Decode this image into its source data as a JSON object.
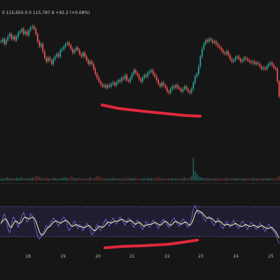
{
  "colors": {
    "background": "#161616",
    "bull": "#26a69a",
    "bear": "#ef5350",
    "volume_bull": "#1f5a55",
    "volume_bear": "#5a2a2a",
    "rsi_line": "#7b6cf6",
    "rsi_ma": "#e8e2a8",
    "rsi_band_fill": "#2b2547",
    "rsi_band_line": "#6f6abf",
    "annotation": "#e0283a",
    "separator": "#2a2a2a"
  },
  "legend": {
    "ohlc_text": "0 115,650.0  0 115,787.9  +92.2 (+0.08%)"
  },
  "time_axis": {
    "labels": [
      "18",
      "19",
      "20",
      "21",
      "22",
      "23",
      "24",
      "25"
    ]
  },
  "chart_data": [
    {
      "type": "candlestick",
      "description_series": "price",
      "x": [
        0,
        1,
        2,
        3,
        4,
        5,
        6,
        7,
        8,
        9,
        10,
        11,
        12,
        13,
        14,
        15,
        16,
        17,
        18,
        19,
        20,
        21,
        22,
        23,
        24,
        25,
        26,
        27,
        28,
        29,
        30,
        31,
        32,
        33,
        34,
        35,
        36,
        37,
        38,
        39,
        40,
        41,
        42,
        43,
        44,
        45,
        46,
        47,
        48,
        49,
        50,
        51,
        52,
        53,
        54,
        55,
        56,
        57,
        58,
        59,
        60,
        61,
        62,
        63,
        64,
        65,
        66,
        67,
        68,
        69,
        70,
        71,
        72,
        73,
        74,
        75,
        76,
        77,
        78,
        79,
        80,
        81,
        82,
        83,
        84,
        85,
        86,
        87,
        88,
        89,
        90,
        91,
        92,
        93,
        94,
        95,
        96,
        97,
        98,
        99,
        100,
        101,
        102,
        103,
        104,
        105,
        106,
        107,
        108,
        109,
        110,
        111,
        112,
        113,
        114,
        115,
        116,
        117,
        118,
        119,
        120,
        121,
        122,
        123,
        124,
        125,
        126,
        127,
        128,
        129,
        130,
        131,
        132,
        133,
        134,
        135,
        136,
        137,
        138,
        139,
        140,
        141,
        142,
        143,
        144,
        145,
        146,
        147,
        148,
        149,
        150,
        151,
        152,
        153,
        154,
        155,
        156,
        157,
        158,
        159
      ],
      "close": [
        0.62,
        0.64,
        0.6,
        0.63,
        0.66,
        0.68,
        0.64,
        0.66,
        0.63,
        0.66,
        0.69,
        0.7,
        0.72,
        0.68,
        0.7,
        0.67,
        0.71,
        0.73,
        0.74,
        0.72,
        0.68,
        0.62,
        0.58,
        0.6,
        0.54,
        0.49,
        0.46,
        0.49,
        0.47,
        0.44,
        0.48,
        0.5,
        0.52,
        0.5,
        0.55,
        0.56,
        0.58,
        0.6,
        0.61,
        0.59,
        0.56,
        0.53,
        0.55,
        0.57,
        0.55,
        0.52,
        0.5,
        0.53,
        0.5,
        0.47,
        0.44,
        0.46,
        0.44,
        0.4,
        0.36,
        0.33,
        0.3,
        0.28,
        0.26,
        0.27,
        0.25,
        0.27,
        0.26,
        0.28,
        0.29,
        0.27,
        0.29,
        0.31,
        0.3,
        0.33,
        0.32,
        0.35,
        0.31,
        0.3,
        0.33,
        0.36,
        0.39,
        0.37,
        0.35,
        0.32,
        0.3,
        0.33,
        0.35,
        0.34,
        0.37,
        0.38,
        0.39,
        0.36,
        0.34,
        0.31,
        0.28,
        0.26,
        0.29,
        0.27,
        0.25,
        0.22,
        0.21,
        0.24,
        0.26,
        0.25,
        0.27,
        0.25,
        0.24,
        0.22,
        0.24,
        0.26,
        0.24,
        0.22,
        0.21,
        0.24,
        0.29,
        0.34,
        0.36,
        0.42,
        0.5,
        0.56,
        0.6,
        0.63,
        0.62,
        0.64,
        0.63,
        0.61,
        0.62,
        0.6,
        0.58,
        0.57,
        0.55,
        0.53,
        0.52,
        0.54,
        0.51,
        0.48,
        0.46,
        0.47,
        0.49,
        0.5,
        0.48,
        0.46,
        0.47,
        0.49,
        0.48,
        0.47,
        0.46,
        0.45,
        0.46,
        0.44,
        0.45,
        0.44,
        0.42,
        0.4,
        0.41,
        0.4,
        0.42,
        0.44,
        0.45,
        0.43,
        0.41,
        0.4,
        0.3,
        0.18
      ],
      "volume": [
        0.05,
        0.06,
        0.05,
        0.07,
        0.08,
        0.05,
        0.06,
        0.05,
        0.06,
        0.07,
        0.06,
        0.05,
        0.08,
        0.06,
        0.05,
        0.07,
        0.06,
        0.05,
        0.08,
        0.07,
        0.12,
        0.1,
        0.09,
        0.06,
        0.05,
        0.06,
        0.08,
        0.05,
        0.06,
        0.05,
        0.07,
        0.06,
        0.05,
        0.06,
        0.05,
        0.06,
        0.07,
        0.08,
        0.06,
        0.05,
        0.1,
        0.08,
        0.06,
        0.05,
        0.06,
        0.07,
        0.06,
        0.05,
        0.05,
        0.06,
        0.06,
        0.08,
        0.05,
        0.06,
        0.07,
        0.12,
        0.1,
        0.08,
        0.06,
        0.05,
        0.06,
        0.05,
        0.06,
        0.05,
        0.07,
        0.06,
        0.05,
        0.05,
        0.06,
        0.05,
        0.06,
        0.05,
        0.08,
        0.07,
        0.06,
        0.05,
        0.06,
        0.07,
        0.05,
        0.06,
        0.05,
        0.06,
        0.05,
        0.06,
        0.07,
        0.05,
        0.06,
        0.05,
        0.06,
        0.07,
        0.08,
        0.06,
        0.05,
        0.06,
        0.05,
        0.06,
        0.07,
        0.05,
        0.06,
        0.05,
        0.06,
        0.05,
        0.06,
        0.05,
        0.06,
        0.07,
        0.05,
        0.06,
        0.08,
        0.1,
        0.55,
        0.22,
        0.15,
        0.1,
        0.08,
        0.07,
        0.06,
        0.05,
        0.07,
        0.06,
        0.05,
        0.06,
        0.05,
        0.06,
        0.07,
        0.05,
        0.06,
        0.05,
        0.06,
        0.07,
        0.05,
        0.06,
        0.05,
        0.06,
        0.05,
        0.06,
        0.07,
        0.05,
        0.06,
        0.05,
        0.06,
        0.05,
        0.06,
        0.05,
        0.07,
        0.06,
        0.05,
        0.06,
        0.05,
        0.06,
        0.05,
        0.06,
        0.07,
        0.05,
        0.06,
        0.05,
        0.06,
        0.05,
        0.08,
        0.1
      ]
    },
    {
      "type": "line",
      "description_series": "rsi",
      "ylim": [
        0,
        1
      ],
      "band": [
        0.3,
        0.7
      ],
      "series": [
        {
          "values": [
            0.5,
            0.62,
            0.7,
            0.58,
            0.42,
            0.34,
            0.48,
            0.64,
            0.6,
            0.52,
            0.44,
            0.56,
            0.66,
            0.72,
            0.64,
            0.54,
            0.6,
            0.7,
            0.66,
            0.55,
            0.4,
            0.28,
            0.22,
            0.26,
            0.34,
            0.4,
            0.48,
            0.44,
            0.5,
            0.56,
            0.62,
            0.58,
            0.52,
            0.46,
            0.54,
            0.6,
            0.64,
            0.58,
            0.46,
            0.38,
            0.44,
            0.5,
            0.56,
            0.48,
            0.42,
            0.5,
            0.44,
            0.38,
            0.46,
            0.52,
            0.48,
            0.4,
            0.3,
            0.34,
            0.42,
            0.5,
            0.44,
            0.38,
            0.46,
            0.54,
            0.6,
            0.52,
            0.46,
            0.54,
            0.62,
            0.58,
            0.5,
            0.56,
            0.64,
            0.6,
            0.54,
            0.48,
            0.56,
            0.62,
            0.58,
            0.5,
            0.44,
            0.52,
            0.58,
            0.54,
            0.46,
            0.4,
            0.48,
            0.56,
            0.5,
            0.44,
            0.52,
            0.58,
            0.54,
            0.48,
            0.42,
            0.5,
            0.56,
            0.6,
            0.54,
            0.48,
            0.44,
            0.52,
            0.58,
            0.62,
            0.56,
            0.5,
            0.46,
            0.54,
            0.6,
            0.56,
            0.48,
            0.44,
            0.52,
            0.62,
            0.8,
            0.86,
            0.78,
            0.7,
            0.74,
            0.68,
            0.6,
            0.56,
            0.62,
            0.66,
            0.58,
            0.52,
            0.48,
            0.56,
            0.62,
            0.54,
            0.46,
            0.42,
            0.5,
            0.56,
            0.48,
            0.44,
            0.52,
            0.58,
            0.5,
            0.46,
            0.42,
            0.5,
            0.56,
            0.52,
            0.46,
            0.4,
            0.48,
            0.54,
            0.5,
            0.44,
            0.4,
            0.46,
            0.52,
            0.48,
            0.42,
            0.36,
            0.44,
            0.5,
            0.46,
            0.4,
            0.36,
            0.3,
            0.22,
            0.14
          ]
        },
        {
          "values": [
            0.52,
            0.56,
            0.6,
            0.6,
            0.54,
            0.46,
            0.44,
            0.5,
            0.56,
            0.56,
            0.52,
            0.52,
            0.56,
            0.62,
            0.64,
            0.62,
            0.6,
            0.62,
            0.64,
            0.62,
            0.56,
            0.46,
            0.36,
            0.3,
            0.3,
            0.34,
            0.4,
            0.44,
            0.46,
            0.5,
            0.54,
            0.56,
            0.56,
            0.54,
            0.52,
            0.54,
            0.56,
            0.58,
            0.56,
            0.52,
            0.48,
            0.46,
            0.48,
            0.5,
            0.48,
            0.46,
            0.46,
            0.44,
            0.44,
            0.46,
            0.48,
            0.46,
            0.42,
            0.38,
            0.38,
            0.42,
            0.46,
            0.46,
            0.44,
            0.46,
            0.5,
            0.54,
            0.54,
            0.52,
            0.54,
            0.56,
            0.56,
            0.56,
            0.58,
            0.6,
            0.58,
            0.56,
            0.54,
            0.56,
            0.58,
            0.56,
            0.52,
            0.5,
            0.52,
            0.54,
            0.52,
            0.48,
            0.46,
            0.48,
            0.5,
            0.5,
            0.5,
            0.52,
            0.54,
            0.52,
            0.5,
            0.48,
            0.5,
            0.54,
            0.56,
            0.54,
            0.5,
            0.48,
            0.5,
            0.54,
            0.56,
            0.54,
            0.52,
            0.5,
            0.52,
            0.54,
            0.54,
            0.5,
            0.48,
            0.52,
            0.6,
            0.7,
            0.76,
            0.76,
            0.74,
            0.72,
            0.68,
            0.64,
            0.62,
            0.62,
            0.62,
            0.6,
            0.56,
            0.54,
            0.56,
            0.56,
            0.54,
            0.5,
            0.48,
            0.5,
            0.5,
            0.48,
            0.48,
            0.5,
            0.52,
            0.5,
            0.48,
            0.46,
            0.46,
            0.48,
            0.5,
            0.48,
            0.46,
            0.46,
            0.48,
            0.48,
            0.46,
            0.44,
            0.46,
            0.48,
            0.46,
            0.44,
            0.42,
            0.42,
            0.44,
            0.44,
            0.4,
            0.36,
            0.3,
            0.24
          ]
        }
      ]
    }
  ],
  "annotations": {
    "price_divergence_line": [
      [
        146,
        150
      ],
      [
        170,
        155
      ],
      [
        205,
        159
      ],
      [
        245,
        163
      ],
      [
        265,
        165
      ],
      [
        286,
        166
      ]
    ],
    "rsi_divergence_line": [
      [
        150,
        354
      ],
      [
        175,
        352
      ],
      [
        205,
        351
      ],
      [
        240,
        349
      ],
      [
        262,
        346
      ],
      [
        282,
        343
      ]
    ]
  }
}
